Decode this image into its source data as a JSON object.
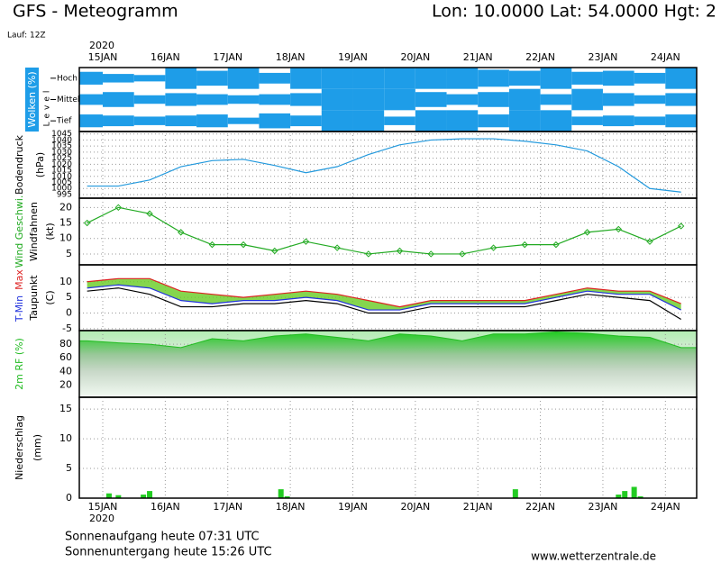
{
  "header": {
    "title": "GFS - Meteogramm",
    "location": "Lon: 10.0000 Lat: 54.0000 Hgt: 2",
    "run": "Lauf: 12Z"
  },
  "time_axis": {
    "year": "2020",
    "xlim": [
      -0.375,
      9.5
    ],
    "xticks": [
      {
        "value": 0,
        "label": "15JAN"
      },
      {
        "value": 1,
        "label": "16JAN"
      },
      {
        "value": 2,
        "label": "17JAN"
      },
      {
        "value": 3,
        "label": "18JAN"
      },
      {
        "value": 4,
        "label": "19JAN"
      },
      {
        "value": 5,
        "label": "20JAN"
      },
      {
        "value": 6,
        "label": "21JAN"
      },
      {
        "value": 7,
        "label": "22JAN"
      },
      {
        "value": 8,
        "label": "23JAN"
      },
      {
        "value": 9,
        "label": "24JAN"
      }
    ]
  },
  "chart_data": [
    {
      "type": "cloud_cover",
      "ylabel": "Wolken (%)",
      "ylabel2": "Level",
      "color": "#1e9de8",
      "x": [
        -0.25,
        0.25,
        0.75,
        1.25,
        1.75,
        2.25,
        2.75,
        3.25,
        3.75,
        4.25,
        4.75,
        5.25,
        5.75,
        6.25,
        6.75,
        7.25,
        7.75,
        8.25,
        8.75,
        9.25
      ],
      "series": [
        {
          "name": "Hoch",
          "values": [
            60,
            40,
            30,
            100,
            70,
            100,
            50,
            100,
            100,
            100,
            100,
            100,
            100,
            80,
            70,
            100,
            60,
            70,
            50,
            100
          ]
        },
        {
          "name": "Mittel",
          "values": [
            50,
            70,
            40,
            60,
            50,
            40,
            50,
            60,
            100,
            100,
            100,
            70,
            50,
            70,
            100,
            50,
            100,
            60,
            40,
            60
          ]
        },
        {
          "name": "Tief",
          "values": [
            60,
            50,
            40,
            50,
            60,
            30,
            70,
            50,
            100,
            100,
            40,
            100,
            100,
            60,
            100,
            100,
            40,
            50,
            40,
            60
          ]
        }
      ]
    },
    {
      "type": "line",
      "ylabel": "Bodendruck",
      "ylabel2": "(hPa)",
      "ylim": [
        992,
        1047
      ],
      "yticks": [
        995,
        1000,
        1005,
        1010,
        1015,
        1020,
        1025,
        1030,
        1035,
        1040,
        1045
      ],
      "grid": true,
      "x": [
        -0.25,
        0.25,
        0.75,
        1.25,
        1.75,
        2.25,
        2.75,
        3.25,
        3.75,
        4.25,
        4.75,
        5.25,
        5.75,
        6.25,
        6.75,
        7.25,
        7.75,
        8.25,
        8.75,
        9.25
      ],
      "series": [
        {
          "name": "Bodendruck",
          "color": "#2299dd",
          "values": [
            1002,
            1002,
            1007,
            1018,
            1023,
            1024,
            1019,
            1013,
            1018,
            1028,
            1036,
            1040,
            1041,
            1041,
            1039,
            1036,
            1031,
            1018,
            1000,
            997
          ]
        }
      ]
    },
    {
      "type": "line",
      "ylabel": "Wind Geschwi.",
      "ylabel2": "Windfahnen",
      "ylabel3": "(kt)",
      "ylim": [
        1.5,
        23
      ],
      "yticks": [
        5,
        10,
        15,
        20
      ],
      "grid": true,
      "markers": true,
      "x": [
        -0.25,
        0.25,
        0.75,
        1.25,
        1.75,
        2.25,
        2.75,
        3.25,
        3.75,
        4.25,
        4.75,
        5.25,
        5.75,
        6.25,
        6.75,
        7.25,
        7.75,
        8.25,
        8.75,
        9.25
      ],
      "series": [
        {
          "name": "Wind Geschwi.",
          "color": "#22aa22",
          "values": [
            15,
            20,
            18,
            12,
            8,
            8,
            6,
            9,
            7,
            5,
            6,
            5,
            5,
            7,
            8,
            8,
            12,
            13,
            9,
            14
          ]
        }
      ]
    },
    {
      "type": "line",
      "ylabel2": "Taupunkt",
      "ylabel3": "(C)",
      "ylim": [
        -5.6,
        15.4
      ],
      "yticks": [
        -5,
        0,
        5,
        10
      ],
      "grid": true,
      "fill_between": "#66cc22",
      "x": [
        -0.25,
        0.25,
        0.75,
        1.25,
        1.75,
        2.25,
        2.75,
        3.25,
        3.75,
        4.25,
        4.75,
        5.25,
        5.75,
        6.25,
        6.75,
        7.25,
        7.75,
        8.25,
        8.75,
        9.25
      ],
      "series": [
        {
          "name": "T-Min",
          "color": "#2233dd",
          "values": [
            8,
            9,
            8,
            4,
            3,
            4,
            4,
            5,
            4,
            1,
            1,
            3,
            3,
            3,
            3,
            5,
            7,
            6,
            6,
            1
          ]
        },
        {
          "name": "Max",
          "color": "#dd2222",
          "values": [
            10,
            11,
            11,
            7,
            6,
            5,
            6,
            7,
            6,
            4,
            2,
            4,
            4,
            4,
            4,
            6,
            8,
            7,
            7,
            3
          ]
        },
        {
          "name": "Taupunkt",
          "color": "#000000",
          "values": [
            7,
            8,
            6,
            2,
            2,
            3,
            3,
            4,
            3,
            0,
            0,
            2,
            2,
            2,
            2,
            4,
            6,
            5,
            4,
            -2
          ]
        }
      ]
    },
    {
      "type": "area",
      "ylabel": "2m RF (%)",
      "ylim": [
        2,
        100
      ],
      "yticks": [
        20,
        40,
        60,
        80
      ],
      "grid": true,
      "x": [
        -0.25,
        0.25,
        0.75,
        1.25,
        1.75,
        2.25,
        2.75,
        3.25,
        3.75,
        4.25,
        4.75,
        5.25,
        5.75,
        6.25,
        6.75,
        7.25,
        7.75,
        8.25,
        8.75,
        9.25
      ],
      "series": [
        {
          "name": "2m RF (%)",
          "color": "#22bb22",
          "values": [
            85,
            82,
            80,
            75,
            88,
            85,
            92,
            95,
            90,
            85,
            95,
            92,
            85,
            95,
            95,
            98,
            96,
            92,
            90,
            75
          ]
        }
      ]
    },
    {
      "type": "bar",
      "ylabel": "Niederschlag",
      "ylabel2": "(mm)",
      "ylim": [
        0,
        17
      ],
      "yticks": [
        0,
        5,
        10,
        15
      ],
      "grid": true,
      "color": "#22cc22",
      "x": [
        0.1,
        0.25,
        0.65,
        0.75,
        2.85,
        2.95,
        6.6,
        8.25,
        8.35,
        8.5,
        8.6
      ],
      "values": [
        0.8,
        0.5,
        0.6,
        1.2,
        1.5,
        0.3,
        1.5,
        0.6,
        1.2,
        1.9,
        0.3
      ]
    }
  ],
  "footer": {
    "sunrise": "Sonnenaufgang heute 07:31 UTC",
    "sunset": "Sonnenuntergang heute 15:26 UTC",
    "site": "www.wetterzentrale.de"
  }
}
